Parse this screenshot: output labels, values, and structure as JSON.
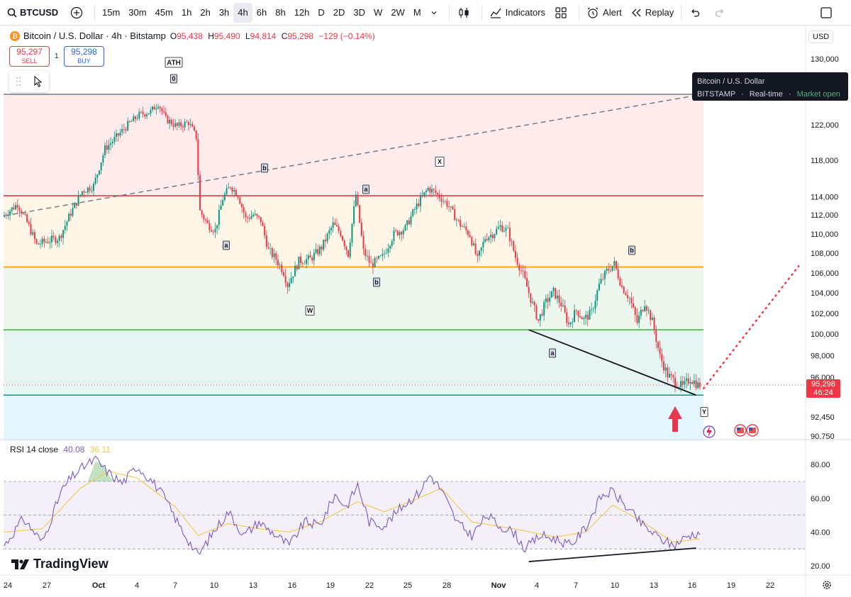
{
  "toolbar": {
    "symbol": "BTCUSD",
    "intervals": [
      "15m",
      "30m",
      "45m",
      "1h",
      "2h",
      "3h",
      "4h",
      "6h",
      "8h",
      "12h",
      "D",
      "2D",
      "3D",
      "W",
      "2W",
      "M"
    ],
    "active_interval": "4h",
    "indicators_label": "Indicators",
    "alert_label": "Alert",
    "replay_label": "Replay"
  },
  "legend": {
    "title": "Bitcoin / U.S. Dollar · 4h · Bitstamp",
    "open_k": "O",
    "open": "95,438",
    "high_k": "H",
    "high": "95,490",
    "low_k": "L",
    "low": "94,814",
    "close_k": "C",
    "close": "95,298",
    "change": "−129 (−0.14%)"
  },
  "trade": {
    "sell_price": "95,297",
    "sell_label": "SELL",
    "spread": "1",
    "buy_price": "95,298",
    "buy_label": "BUY"
  },
  "tooltip": {
    "line1": "Bitcoin / U.S. Dollar",
    "exchange": "BITSTAMP",
    "dot": "·",
    "realtime": "Real-time",
    "status": "Market open"
  },
  "price_axis": {
    "currency": "USD",
    "ticks": [
      130000,
      122000,
      118000,
      114000,
      112000,
      110000,
      108000,
      106000,
      104000,
      102000,
      100000,
      98000,
      96000,
      92450,
      90750
    ],
    "tick_labels": [
      "130,000",
      "122,000",
      "118,000",
      "114,000",
      "112,000",
      "110,000",
      "108,000",
      "106,000",
      "104,000",
      "102,000",
      "100,000",
      "98,000",
      "96,000",
      "92,450",
      "90,750"
    ],
    "current_price": "95,298",
    "countdown": "46:24"
  },
  "rsi": {
    "title": "RSI 14 close",
    "rsi_value": "40.08",
    "ma_value": "36.11",
    "ticks": [
      "80.00",
      "60.00",
      "40.00",
      "20.00"
    ]
  },
  "time_axis": {
    "labels": [
      "24",
      "27",
      "Oct",
      "4",
      "7",
      "10",
      "13",
      "16",
      "19",
      "22",
      "25",
      "28",
      "Nov",
      "4",
      "7",
      "10",
      "13",
      "16",
      "19",
      "22"
    ]
  },
  "annotations": {
    "ath": "ATH",
    "zero": "0",
    "w": "W",
    "x": "X",
    "y": "Y",
    "a1": "a",
    "b1": "b",
    "a2": "a",
    "b2": "b",
    "a3": "a",
    "b3": "b"
  },
  "branding": {
    "logo_text": "TradingView"
  },
  "chart_data": {
    "type": "candlestick",
    "title": "Bitcoin / U.S. Dollar · 4h · Bitstamp",
    "ylim": [
      90000,
      131000
    ],
    "levels": [
      {
        "price": 125700,
        "color": "#787b86"
      },
      {
        "price": 114100,
        "color": "#f23645"
      },
      {
        "price": 106600,
        "color": "#ff9800"
      },
      {
        "price": 100400,
        "color": "#4caf50"
      },
      {
        "price": 94400,
        "color": "#089981"
      }
    ],
    "path_points": [
      [
        0,
        111800
      ],
      [
        8,
        113200
      ],
      [
        14,
        110800
      ],
      [
        18,
        108900
      ],
      [
        24,
        109300
      ],
      [
        30,
        109600
      ],
      [
        36,
        112200
      ],
      [
        42,
        114600
      ],
      [
        48,
        115200
      ],
      [
        54,
        119300
      ],
      [
        60,
        120600
      ],
      [
        66,
        122000
      ],
      [
        72,
        123200
      ],
      [
        78,
        123600
      ],
      [
        82,
        124600
      ],
      [
        86,
        122700
      ],
      [
        92,
        121800
      ],
      [
        98,
        122300
      ],
      [
        102,
        120600
      ],
      [
        104,
        112400
      ],
      [
        108,
        111000
      ],
      [
        112,
        110400
      ],
      [
        116,
        113800
      ],
      [
        120,
        115200
      ],
      [
        124,
        114200
      ],
      [
        128,
        111600
      ],
      [
        132,
        112000
      ],
      [
        136,
        111400
      ],
      [
        140,
        108300
      ],
      [
        144,
        107400
      ],
      [
        148,
        106100
      ],
      [
        150,
        104800
      ],
      [
        156,
        107200
      ],
      [
        162,
        107400
      ],
      [
        168,
        108600
      ],
      [
        174,
        111000
      ],
      [
        178,
        110100
      ],
      [
        182,
        107900
      ],
      [
        186,
        114200
      ],
      [
        190,
        108200
      ],
      [
        194,
        106800
      ],
      [
        200,
        107600
      ],
      [
        206,
        110000
      ],
      [
        212,
        110600
      ],
      [
        218,
        113000
      ],
      [
        224,
        114900
      ],
      [
        228,
        114400
      ],
      [
        234,
        113200
      ],
      [
        240,
        111200
      ],
      [
        246,
        109900
      ],
      [
        250,
        107300
      ],
      [
        254,
        109600
      ],
      [
        258,
        110000
      ],
      [
        262,
        110800
      ],
      [
        266,
        110300
      ],
      [
        270,
        107600
      ],
      [
        274,
        105800
      ],
      [
        278,
        103400
      ],
      [
        282,
        101300
      ],
      [
        286,
        103100
      ],
      [
        290,
        104100
      ],
      [
        294,
        102900
      ],
      [
        298,
        100900
      ],
      [
        302,
        102300
      ],
      [
        306,
        101400
      ],
      [
        310,
        102100
      ],
      [
        314,
        104800
      ],
      [
        318,
        106200
      ],
      [
        322,
        106900
      ],
      [
        326,
        104600
      ],
      [
        330,
        103500
      ],
      [
        334,
        101100
      ],
      [
        338,
        103100
      ],
      [
        342,
        101200
      ],
      [
        346,
        97900
      ],
      [
        350,
        96200
      ],
      [
        354,
        95600
      ],
      [
        358,
        95100
      ],
      [
        362,
        95900
      ],
      [
        366,
        95300
      ]
    ],
    "rsi_points": [
      [
        0,
        32
      ],
      [
        10,
        48
      ],
      [
        20,
        34
      ],
      [
        30,
        64
      ],
      [
        35,
        72
      ],
      [
        42,
        79
      ],
      [
        48,
        83
      ],
      [
        55,
        75
      ],
      [
        62,
        69
      ],
      [
        70,
        79
      ],
      [
        78,
        70
      ],
      [
        84,
        61
      ],
      [
        92,
        44
      ],
      [
        102,
        26
      ],
      [
        110,
        40
      ],
      [
        118,
        52
      ],
      [
        126,
        38
      ],
      [
        134,
        46
      ],
      [
        142,
        39
      ],
      [
        150,
        32
      ],
      [
        158,
        46
      ],
      [
        166,
        44
      ],
      [
        174,
        62
      ],
      [
        180,
        55
      ],
      [
        186,
        68
      ],
      [
        192,
        46
      ],
      [
        200,
        44
      ],
      [
        210,
        56
      ],
      [
        218,
        63
      ],
      [
        224,
        74
      ],
      [
        230,
        65
      ],
      [
        238,
        46
      ],
      [
        246,
        38
      ],
      [
        254,
        50
      ],
      [
        260,
        44
      ],
      [
        268,
        40
      ],
      [
        274,
        30
      ],
      [
        282,
        38
      ],
      [
        290,
        36
      ],
      [
        298,
        32
      ],
      [
        306,
        43
      ],
      [
        314,
        61
      ],
      [
        320,
        64
      ],
      [
        328,
        54
      ],
      [
        336,
        44
      ],
      [
        344,
        37
      ],
      [
        352,
        32
      ],
      [
        360,
        38
      ],
      [
        366,
        40
      ]
    ],
    "rsi_ma_points": [
      [
        0,
        40
      ],
      [
        20,
        42
      ],
      [
        40,
        66
      ],
      [
        55,
        76
      ],
      [
        70,
        72
      ],
      [
        90,
        55
      ],
      [
        102,
        38
      ],
      [
        118,
        45
      ],
      [
        134,
        42
      ],
      [
        150,
        40
      ],
      [
        166,
        46
      ],
      [
        186,
        58
      ],
      [
        200,
        52
      ],
      [
        218,
        60
      ],
      [
        230,
        66
      ],
      [
        246,
        46
      ],
      [
        268,
        42
      ],
      [
        290,
        37
      ],
      [
        306,
        40
      ],
      [
        320,
        56
      ],
      [
        336,
        46
      ],
      [
        352,
        34
      ],
      [
        366,
        36
      ]
    ],
    "trendline": {
      "from": [
        276,
        100400
      ],
      "to": [
        364,
        94400
      ]
    },
    "dashed_trend": {
      "from": [
        0,
        111900
      ],
      "to": [
        370,
        125800
      ]
    },
    "projection": {
      "from": [
        368,
        95000
      ],
      "to": [
        418,
        106700
      ]
    },
    "rsi_trendline": {
      "from": [
        276,
        22.5
      ],
      "to": [
        364,
        30.5
      ]
    }
  }
}
